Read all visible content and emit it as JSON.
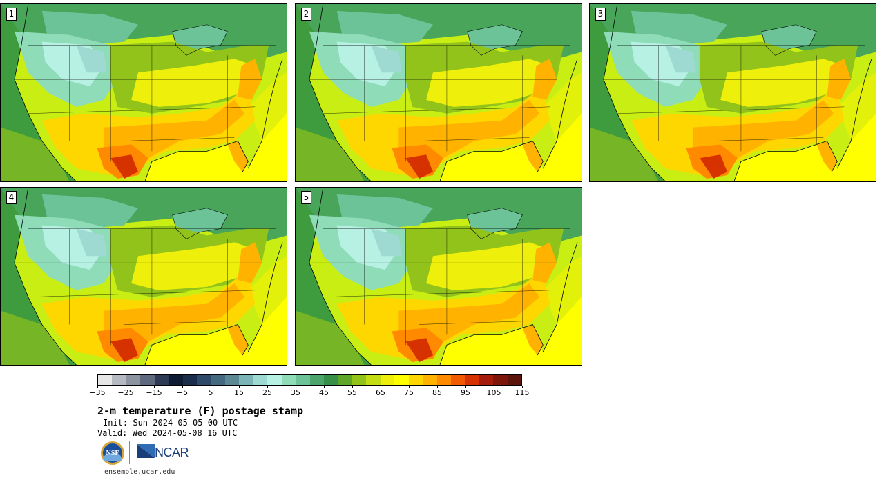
{
  "panels": [
    {
      "label": "1"
    },
    {
      "label": "2"
    },
    {
      "label": "3"
    },
    {
      "label": "4"
    },
    {
      "label": "5"
    }
  ],
  "colorbar": {
    "colors": [
      "#e6e6e6",
      "#b4b9c2",
      "#8c94a2",
      "#5f697d",
      "#2f3a55",
      "#0e1c33",
      "#1a2e4c",
      "#2d4a6a",
      "#44687f",
      "#5c8893",
      "#7bb3b7",
      "#9ed9d2",
      "#b7f1e4",
      "#8fdcb9",
      "#6cc397",
      "#4aa56b",
      "#368f47",
      "#5ea52a",
      "#91c31a",
      "#c2de12",
      "#eef00b",
      "#ffff00",
      "#ffd700",
      "#ffb300",
      "#ff8a00",
      "#f25a00",
      "#d63200",
      "#a61c0a",
      "#7d1508",
      "#5a140a"
    ],
    "ticks": [
      "−35",
      "−25",
      "−15",
      "−5",
      "5",
      "15",
      "25",
      "35",
      "45",
      "55",
      "65",
      "75",
      "85",
      "95",
      "105",
      "115"
    ]
  },
  "header": {
    "title": "2-m temperature (F) postage stamp",
    "init": "Init: Sun 2024-05-05 00 UTC",
    "valid": "Valid: Wed 2024-05-08 16 UTC"
  },
  "logos": {
    "nsf": "NSF",
    "ncar": "NCAR"
  },
  "footer": {
    "url": "ensemble.ucar.edu"
  }
}
